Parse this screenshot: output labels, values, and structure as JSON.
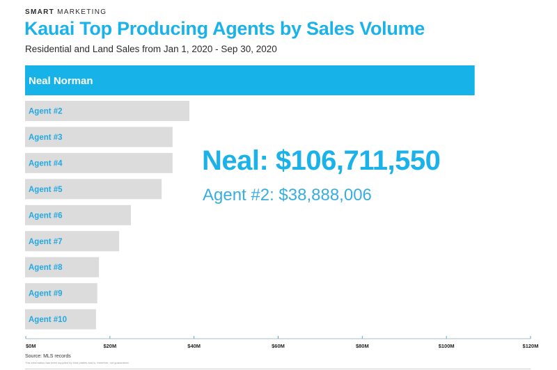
{
  "header": {
    "brand_bold": "SMART",
    "brand_light": "MARKETING",
    "title": "Kauai Top Producing Agents by Sales Volume",
    "subtitle": "Residential and Land Sales from Jan 1, 2020 - Sep 30, 2020"
  },
  "callout": {
    "primary": "Neal: $106,711,550",
    "secondary": "Agent #2: $38,888,006"
  },
  "footer": {
    "source": "Source: MLS records",
    "disclaimer": "This information has been supplied by third parties and is, therefore, not guaranteed."
  },
  "colors": {
    "highlight": "#17b3e8",
    "bar": "#dcdcdd",
    "label_on_gray": "#22a9e0",
    "label_on_highlight": "#ffffff",
    "axis": "#c9d3da",
    "tick": "#5aa9d6"
  },
  "chart_data": {
    "type": "bar",
    "orientation": "horizontal",
    "title": "Kauai Top Producing Agents by Sales Volume",
    "subtitle": "Residential and Land Sales from Jan 1, 2020 - Sep 30, 2020",
    "xlabel": "",
    "ylabel": "",
    "unit": "$M",
    "categories": [
      "Neal Norman",
      "Agent #2",
      "Agent #3",
      "Agent #4",
      "Agent #5",
      "Agent #6",
      "Agent #7",
      "Agent #8",
      "Agent #9",
      "Agent #10"
    ],
    "values": [
      106.71,
      38.89,
      34.9,
      34.9,
      32.3,
      25.0,
      22.2,
      17.4,
      17.0,
      16.7
    ],
    "highlight_index": 0,
    "xlim": [
      0,
      120
    ],
    "xticks": [
      0,
      20,
      40,
      60,
      80,
      100,
      120
    ],
    "xtick_labels": [
      "$0M",
      "$20M",
      "$40M",
      "$60M",
      "$80M",
      "$100M",
      "$120M"
    ],
    "grid": false,
    "legend": "none"
  }
}
